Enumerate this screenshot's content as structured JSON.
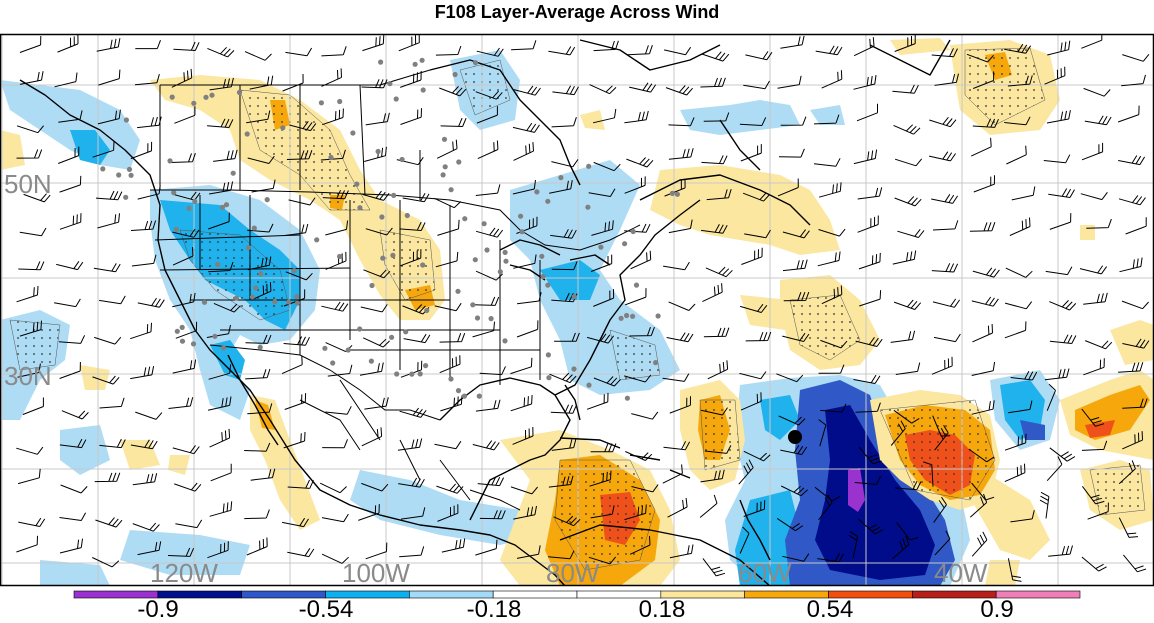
{
  "title": "F108 Layer-Average Across Wind",
  "grid": {
    "lat_labels": [
      "50N",
      "30N"
    ],
    "lon_labels": [
      "120W",
      "100W",
      "80W",
      "60W",
      "40W"
    ]
  },
  "colorbar": {
    "colors": [
      "#9b30d0",
      "#000f8c",
      "#2f57c9",
      "#0bb0f0",
      "#a3daf7",
      "#ffffff",
      "#ffffff",
      "#fbe69a",
      "#f7a80a",
      "#f24e0f",
      "#b81e1a",
      "#f07fb8"
    ],
    "labels": [
      "-0.9",
      "-0.54",
      "-0.18",
      "0.18",
      "0.54",
      "0.9"
    ]
  },
  "fill_colors": {
    "light_blue": "#aedcf5",
    "blue": "#1fb2ec",
    "mid_blue": "#3058c6",
    "navy": "#000c8a",
    "purple": "#9a32cf",
    "yellow": "#fbe79f",
    "orange": "#f6a70c",
    "red_orange": "#f0501a"
  },
  "marker": "storm-center-dot"
}
